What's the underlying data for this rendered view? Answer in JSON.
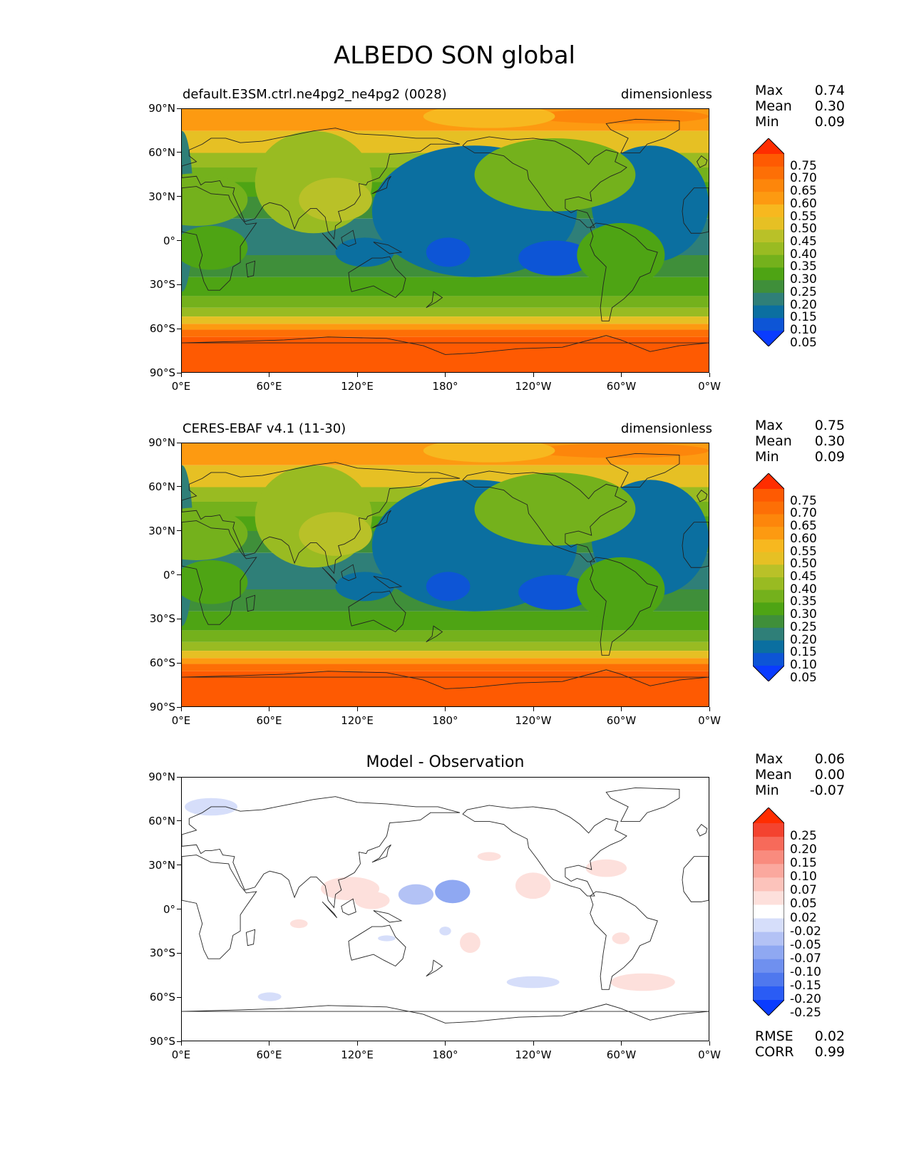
{
  "title": "ALBEDO SON global",
  "axes": {
    "y_ticks": [
      "90°N",
      "60°N",
      "30°N",
      "0°",
      "30°S",
      "60°S",
      "90°S"
    ],
    "x_ticks": [
      "0°E",
      "60°E",
      "120°E",
      "180°",
      "120°W",
      "60°W",
      "0°W"
    ]
  },
  "panels": [
    {
      "left_title": "default.E3SM.ctrl.ne4pg2_ne4pg2 (0028)",
      "right_title": "dimensionless",
      "stats": [
        {
          "name": "Max",
          "value": "0.74"
        },
        {
          "name": "Mean",
          "value": "0.30"
        },
        {
          "name": "Min",
          "value": "0.09"
        }
      ],
      "colorbar_labels": [
        "0.75",
        "0.70",
        "0.65",
        "0.60",
        "0.55",
        "0.50",
        "0.45",
        "0.40",
        "0.35",
        "0.30",
        "0.25",
        "0.20",
        "0.15",
        "0.10",
        "0.05"
      ]
    },
    {
      "left_title": "CERES-EBAF v4.1 (11-30)",
      "right_title": "dimensionless",
      "stats": [
        {
          "name": "Max",
          "value": "0.75"
        },
        {
          "name": "Mean",
          "value": "0.30"
        },
        {
          "name": "Min",
          "value": "0.09"
        }
      ],
      "colorbar_labels": [
        "0.75",
        "0.70",
        "0.65",
        "0.60",
        "0.55",
        "0.50",
        "0.45",
        "0.40",
        "0.35",
        "0.30",
        "0.25",
        "0.20",
        "0.15",
        "0.10",
        "0.05"
      ]
    },
    {
      "center_title": "Model - Observation",
      "stats": [
        {
          "name": "Max",
          "value": "0.06"
        },
        {
          "name": "Mean",
          "value": "0.00"
        },
        {
          "name": "Min",
          "value": "-0.07"
        }
      ],
      "colorbar_labels": [
        "0.25",
        "0.20",
        "0.15",
        "0.10",
        "0.07",
        "0.05",
        "0.02",
        "-0.02",
        "-0.05",
        "-0.07",
        "-0.10",
        "-0.15",
        "-0.20",
        "-0.25"
      ],
      "metrics": [
        {
          "name": "RMSE",
          "value": "0.02"
        },
        {
          "name": "CORR",
          "value": "0.99"
        }
      ]
    }
  ],
  "colors": {
    "albedo_levels": [
      "#0a3cff",
      "#0d55d6",
      "#0b6fa0",
      "#2f7f78",
      "#3f8f3a",
      "#4ea414",
      "#74b11c",
      "#99bb22",
      "#b9c128",
      "#e6c024",
      "#f7b81f",
      "#fd9a11",
      "#fd860b",
      "#fd6f06",
      "#fe5a02",
      "#ff2d00"
    ],
    "diff_levels": [
      "#0a3cff",
      "#2a5cf5",
      "#4f78ee",
      "#6f90ef",
      "#8fa8f2",
      "#b3c2f5",
      "#d6defa",
      "#ffffff",
      "#fde0dc",
      "#fcc3bb",
      "#fba89e",
      "#f98b7e",
      "#f76a5a",
      "#f4432f",
      "#ff2d00"
    ]
  },
  "chart_data": [
    {
      "type": "heatmap",
      "title": "default.E3SM.ctrl.ne4pg2_ne4pg2 (0028)",
      "units": "dimensionless",
      "x_range": [
        "0°E",
        "0°W"
      ],
      "y_range": [
        "90°S",
        "90°N"
      ],
      "levels": [
        0.05,
        0.1,
        0.15,
        0.2,
        0.25,
        0.3,
        0.35,
        0.4,
        0.45,
        0.5,
        0.55,
        0.6,
        0.65,
        0.7,
        0.75
      ],
      "zonal_band_values": [
        {
          "lat": [
            60,
            90
          ],
          "value": 0.55
        },
        {
          "lat": [
            40,
            60
          ],
          "value": 0.4
        },
        {
          "lat": [
            15,
            40
          ],
          "value": 0.3
        },
        {
          "lat": [
            -15,
            15
          ],
          "value": 0.2
        },
        {
          "lat": [
            -40,
            -15
          ],
          "value": 0.25
        },
        {
          "lat": [
            -55,
            -40
          ],
          "value": 0.4
        },
        {
          "lat": [
            -65,
            -55
          ],
          "value": 0.55
        },
        {
          "lat": [
            -90,
            -65
          ],
          "value": 0.7
        }
      ],
      "max": 0.74,
      "mean": 0.3,
      "min": 0.09
    },
    {
      "type": "heatmap",
      "title": "CERES-EBAF v4.1 (11-30)",
      "units": "dimensionless",
      "x_range": [
        "0°E",
        "0°W"
      ],
      "y_range": [
        "90°S",
        "90°N"
      ],
      "levels": [
        0.05,
        0.1,
        0.15,
        0.2,
        0.25,
        0.3,
        0.35,
        0.4,
        0.45,
        0.5,
        0.55,
        0.6,
        0.65,
        0.7,
        0.75
      ],
      "zonal_band_values": [
        {
          "lat": [
            60,
            90
          ],
          "value": 0.55
        },
        {
          "lat": [
            40,
            60
          ],
          "value": 0.4
        },
        {
          "lat": [
            15,
            40
          ],
          "value": 0.3
        },
        {
          "lat": [
            -15,
            15
          ],
          "value": 0.2
        },
        {
          "lat": [
            -40,
            -15
          ],
          "value": 0.25
        },
        {
          "lat": [
            -55,
            -40
          ],
          "value": 0.4
        },
        {
          "lat": [
            -65,
            -55
          ],
          "value": 0.55
        },
        {
          "lat": [
            -90,
            -65
          ],
          "value": 0.7
        }
      ],
      "max": 0.75,
      "mean": 0.3,
      "min": 0.09
    },
    {
      "type": "heatmap",
      "title": "Model - Observation",
      "levels": [
        -0.25,
        -0.2,
        -0.15,
        -0.1,
        -0.07,
        -0.05,
        -0.02,
        0.02,
        0.05,
        0.07,
        0.1,
        0.15,
        0.2,
        0.25
      ],
      "max": 0.06,
      "mean": 0.0,
      "min": -0.07,
      "rmse": 0.02,
      "corr": 0.99
    }
  ]
}
